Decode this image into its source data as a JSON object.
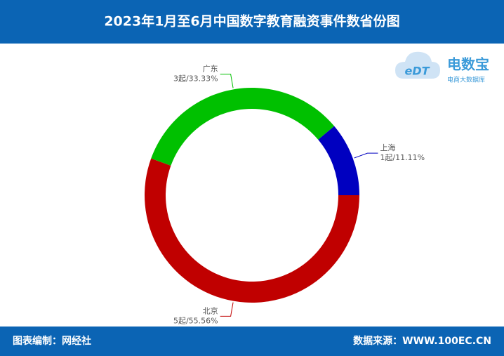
{
  "chart_data": {
    "type": "donut",
    "title": "2023年1月至6月中国数字教育融资事件数省份图",
    "categories": [
      "北京",
      "广东",
      "上海"
    ],
    "values": [
      5,
      3,
      1
    ],
    "value_labels": [
      "5起/55.56%",
      "3起/33.33%",
      "1起/11.11%"
    ],
    "colors": [
      "#c00000",
      "#00c000",
      "#0000c0"
    ]
  },
  "logo": {
    "mark": "eDT",
    "name": "电数宝",
    "tagline": "电商大数据库"
  },
  "footer": {
    "left": "图表编制：网经社",
    "right": "数据来源：WWW.100EC.CN"
  }
}
